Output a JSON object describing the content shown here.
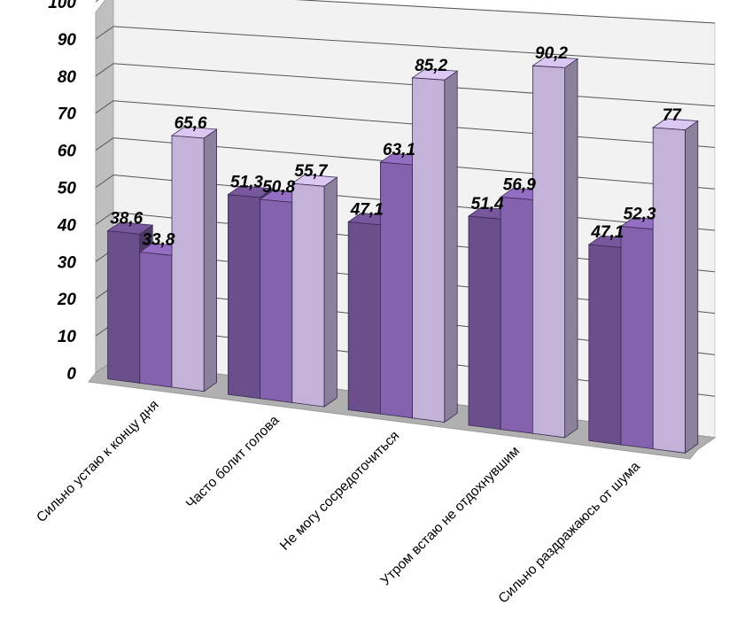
{
  "chart_data": {
    "type": "bar",
    "three_d": true,
    "categories": [
      "Сильно устаю к концу дня",
      "Часто болит голова",
      "Не могу сосредоточиться",
      "Утром встаю не отдохнувшим",
      "Сильно раздражаюсь от шума"
    ],
    "series": [
      {
        "color": "#6b4f8c",
        "values": [
          38.6,
          51.3,
          47.1,
          51.4,
          47.1
        ]
      },
      {
        "color": "#8462ad",
        "values": [
          33.8,
          50.8,
          63.1,
          56.9,
          52.3
        ]
      },
      {
        "color": "#c3b3d9",
        "values": [
          65.6,
          55.7,
          85.2,
          90.2,
          77
        ]
      }
    ],
    "data_labels": [
      [
        "38,6",
        "51,3",
        "47,1",
        "51,4",
        "47,1"
      ],
      [
        "33,8",
        "50,8",
        "63,1",
        "56,9",
        "52,3"
      ],
      [
        "65,6",
        "55,7",
        "85,2",
        "90,2",
        "77"
      ]
    ],
    "yticks": [
      "0",
      "10",
      "20",
      "30",
      "40",
      "50",
      "60",
      "70",
      "80",
      "90",
      "100"
    ],
    "ylim": [
      0,
      100
    ],
    "grid": true,
    "legend": "none",
    "colors": {
      "wall": "#f2f2f2",
      "side_wall": "#bfbfbf",
      "floor": "#b0b0b0",
      "grid": "#555555"
    }
  }
}
